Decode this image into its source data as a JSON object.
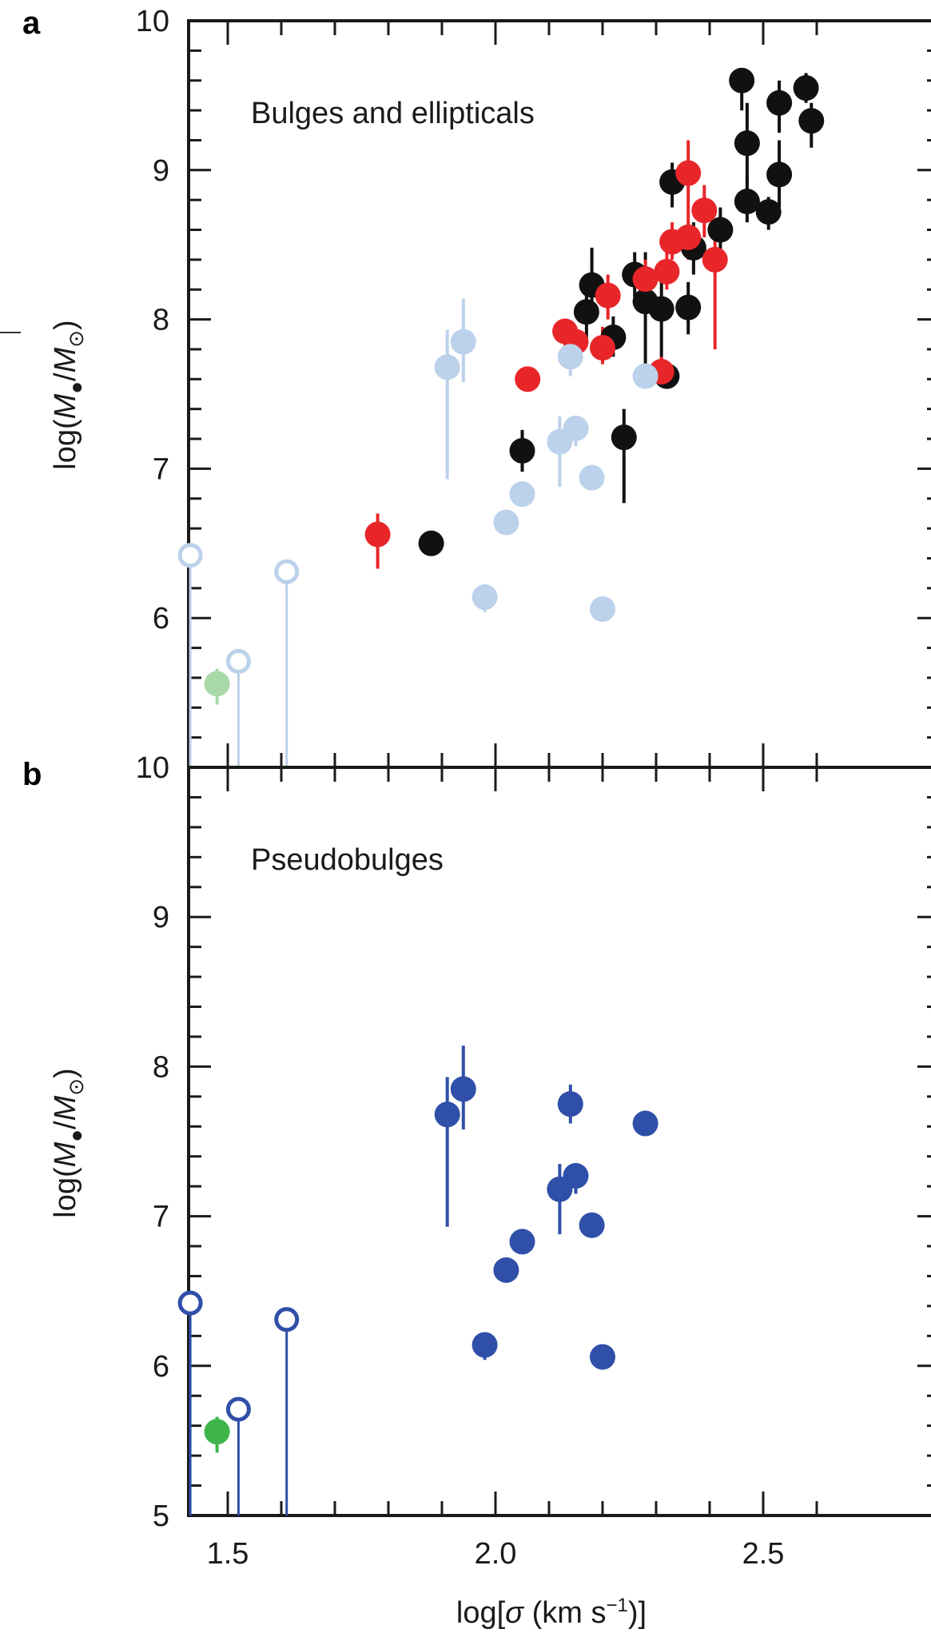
{
  "colors": {
    "axis": "#1a1a1a",
    "black": "#111111",
    "red": "#e8262a",
    "light_blue": "#bcd1ea",
    "light_green": "#a9d9a8",
    "dark_blue": "#2f4fa8",
    "green": "#3db54a"
  },
  "chart_data": [
    {
      "type": "scatter",
      "panel_label": "a",
      "annotation": "Bulges and ellipticals",
      "ylabel": "log(M●/M⊙)",
      "xlabel": "",
      "xlim": [
        1.3,
        2.66
      ],
      "ylim": [
        5,
        10
      ],
      "x_ticks": [
        1.5,
        2.0,
        2.5
      ],
      "y_ticks": [
        6,
        7,
        8,
        9,
        10
      ],
      "y_tick_labels": [
        "6",
        "7",
        "8",
        "9",
        "10"
      ],
      "series": [
        {
          "style": "black-filled",
          "points": [
            {
              "x": 1.88,
              "y": 6.5
            },
            {
              "x": 2.05,
              "y": 7.12,
              "lo": 6.98,
              "hi": 7.26
            },
            {
              "x": 2.17,
              "y": 8.05,
              "lo": 7.85,
              "hi": 8.25
            },
            {
              "x": 2.18,
              "y": 8.23,
              "lo": 7.98,
              "hi": 8.48
            },
            {
              "x": 2.22,
              "y": 7.88,
              "lo": 7.75,
              "hi": 8.02
            },
            {
              "x": 2.24,
              "y": 7.21,
              "lo": 6.77,
              "hi": 7.4
            },
            {
              "x": 2.26,
              "y": 8.3,
              "lo": 8.15,
              "hi": 8.45
            },
            {
              "x": 2.28,
              "y": 8.12,
              "lo": 7.7,
              "hi": 8.45
            },
            {
              "x": 2.31,
              "y": 8.07,
              "lo": 7.55,
              "hi": 8.3
            },
            {
              "x": 2.32,
              "y": 7.62,
              "lo": 7.55,
              "hi": 7.7
            },
            {
              "x": 2.33,
              "y": 8.92,
              "lo": 8.75,
              "hi": 9.05
            },
            {
              "x": 2.36,
              "y": 8.08,
              "lo": 7.9,
              "hi": 8.25
            },
            {
              "x": 2.37,
              "y": 8.48,
              "lo": 8.3,
              "hi": 8.65
            },
            {
              "x": 2.42,
              "y": 8.6,
              "lo": 8.45,
              "hi": 8.75
            },
            {
              "x": 2.46,
              "y": 9.6,
              "lo": 9.4,
              "hi": 9.65
            },
            {
              "x": 2.47,
              "y": 8.79,
              "lo": 8.65,
              "hi": 8.95
            },
            {
              "x": 2.47,
              "y": 9.18,
              "lo": 8.9,
              "hi": 9.45
            },
            {
              "x": 2.51,
              "y": 8.72,
              "lo": 8.6,
              "hi": 8.82
            },
            {
              "x": 2.53,
              "y": 8.97,
              "lo": 8.75,
              "hi": 9.2
            },
            {
              "x": 2.53,
              "y": 9.45,
              "lo": 9.25,
              "hi": 9.6
            },
            {
              "x": 2.58,
              "y": 9.55,
              "lo": 9.45,
              "hi": 9.65
            },
            {
              "x": 2.59,
              "y": 9.33,
              "lo": 9.15,
              "hi": 9.45
            }
          ]
        },
        {
          "style": "red-filled",
          "points": [
            {
              "x": 1.78,
              "y": 6.56,
              "lo": 6.33,
              "hi": 6.7
            },
            {
              "x": 2.06,
              "y": 7.6
            },
            {
              "x": 2.13,
              "y": 7.92
            },
            {
              "x": 2.15,
              "y": 7.85,
              "lo": 7.75,
              "hi": 7.95
            },
            {
              "x": 2.2,
              "y": 7.81,
              "lo": 7.7,
              "hi": 7.95
            },
            {
              "x": 2.21,
              "y": 8.16,
              "lo": 8.0,
              "hi": 8.3
            },
            {
              "x": 2.28,
              "y": 8.27,
              "lo": 8.15,
              "hi": 8.4
            },
            {
              "x": 2.31,
              "y": 7.65,
              "lo": 7.55,
              "hi": 7.75
            },
            {
              "x": 2.32,
              "y": 8.32,
              "lo": 8.2,
              "hi": 8.45
            },
            {
              "x": 2.33,
              "y": 8.52,
              "lo": 8.4,
              "hi": 8.65
            },
            {
              "x": 2.36,
              "y": 8.55,
              "lo": 8.4,
              "hi": 8.75
            },
            {
              "x": 2.36,
              "y": 8.98,
              "lo": 8.75,
              "hi": 9.2
            },
            {
              "x": 2.39,
              "y": 8.73,
              "lo": 8.55,
              "hi": 8.9
            },
            {
              "x": 2.41,
              "y": 8.4,
              "lo": 7.8,
              "hi": 8.55
            }
          ]
        },
        {
          "style": "light-blue-filled",
          "points": [
            {
              "x": 1.91,
              "y": 7.68,
              "lo": 6.93,
              "hi": 7.93
            },
            {
              "x": 1.94,
              "y": 7.85,
              "lo": 7.58,
              "hi": 8.14
            },
            {
              "x": 1.98,
              "y": 6.14,
              "lo": 6.04,
              "hi": 6.22
            },
            {
              "x": 2.02,
              "y": 6.64
            },
            {
              "x": 2.05,
              "y": 6.83
            },
            {
              "x": 2.12,
              "y": 7.18,
              "lo": 6.88,
              "hi": 7.35
            },
            {
              "x": 2.14,
              "y": 7.75,
              "lo": 7.62,
              "hi": 7.88
            },
            {
              "x": 2.15,
              "y": 7.27,
              "lo": 7.15,
              "hi": 7.35
            },
            {
              "x": 2.18,
              "y": 6.94
            },
            {
              "x": 2.2,
              "y": 6.06
            },
            {
              "x": 2.28,
              "y": 7.62
            }
          ]
        },
        {
          "style": "light-blue-open",
          "points": [
            {
              "x": 1.43,
              "y": 6.42,
              "lo": 5.0
            },
            {
              "x": 1.52,
              "y": 5.71,
              "lo": 5.0
            },
            {
              "x": 1.61,
              "y": 6.31,
              "lo": 5.0
            }
          ]
        },
        {
          "style": "light-green-filled",
          "points": [
            {
              "x": 1.48,
              "y": 5.56,
              "lo": 5.42,
              "hi": 5.66
            }
          ]
        }
      ]
    },
    {
      "type": "scatter",
      "panel_label": "b",
      "annotation": "Pseudobulges",
      "ylabel": "log(M●/M⊙)",
      "xlabel": "log[σ (km s⁻¹)]",
      "xlim": [
        1.3,
        2.66
      ],
      "ylim": [
        5,
        10
      ],
      "x_ticks": [
        1.5,
        2.0,
        2.5
      ],
      "x_tick_labels": [
        "1.5",
        "2.0",
        "2.5"
      ],
      "y_ticks": [
        5,
        6,
        7,
        8,
        9,
        10
      ],
      "y_tick_labels": [
        "5",
        "6",
        "7",
        "8",
        "9",
        "10"
      ],
      "series": [
        {
          "style": "dark-blue-filled",
          "points": [
            {
              "x": 1.91,
              "y": 7.68,
              "lo": 6.93,
              "hi": 7.93
            },
            {
              "x": 1.94,
              "y": 7.85,
              "lo": 7.58,
              "hi": 8.14
            },
            {
              "x": 1.98,
              "y": 6.14,
              "lo": 6.04,
              "hi": 6.22
            },
            {
              "x": 2.02,
              "y": 6.64
            },
            {
              "x": 2.05,
              "y": 6.83
            },
            {
              "x": 2.12,
              "y": 7.18,
              "lo": 6.88,
              "hi": 7.35
            },
            {
              "x": 2.14,
              "y": 7.75,
              "lo": 7.62,
              "hi": 7.88
            },
            {
              "x": 2.15,
              "y": 7.27,
              "lo": 7.15,
              "hi": 7.35
            },
            {
              "x": 2.18,
              "y": 6.94
            },
            {
              "x": 2.2,
              "y": 6.06
            },
            {
              "x": 2.28,
              "y": 7.62
            }
          ]
        },
        {
          "style": "dark-blue-open",
          "points": [
            {
              "x": 1.43,
              "y": 6.42,
              "lo": 5.0
            },
            {
              "x": 1.52,
              "y": 5.71,
              "lo": 5.0
            },
            {
              "x": 1.61,
              "y": 6.31,
              "lo": 5.0
            }
          ]
        },
        {
          "style": "green-filled",
          "points": [
            {
              "x": 1.48,
              "y": 5.56,
              "lo": 5.42,
              "hi": 5.66
            }
          ]
        }
      ]
    }
  ]
}
